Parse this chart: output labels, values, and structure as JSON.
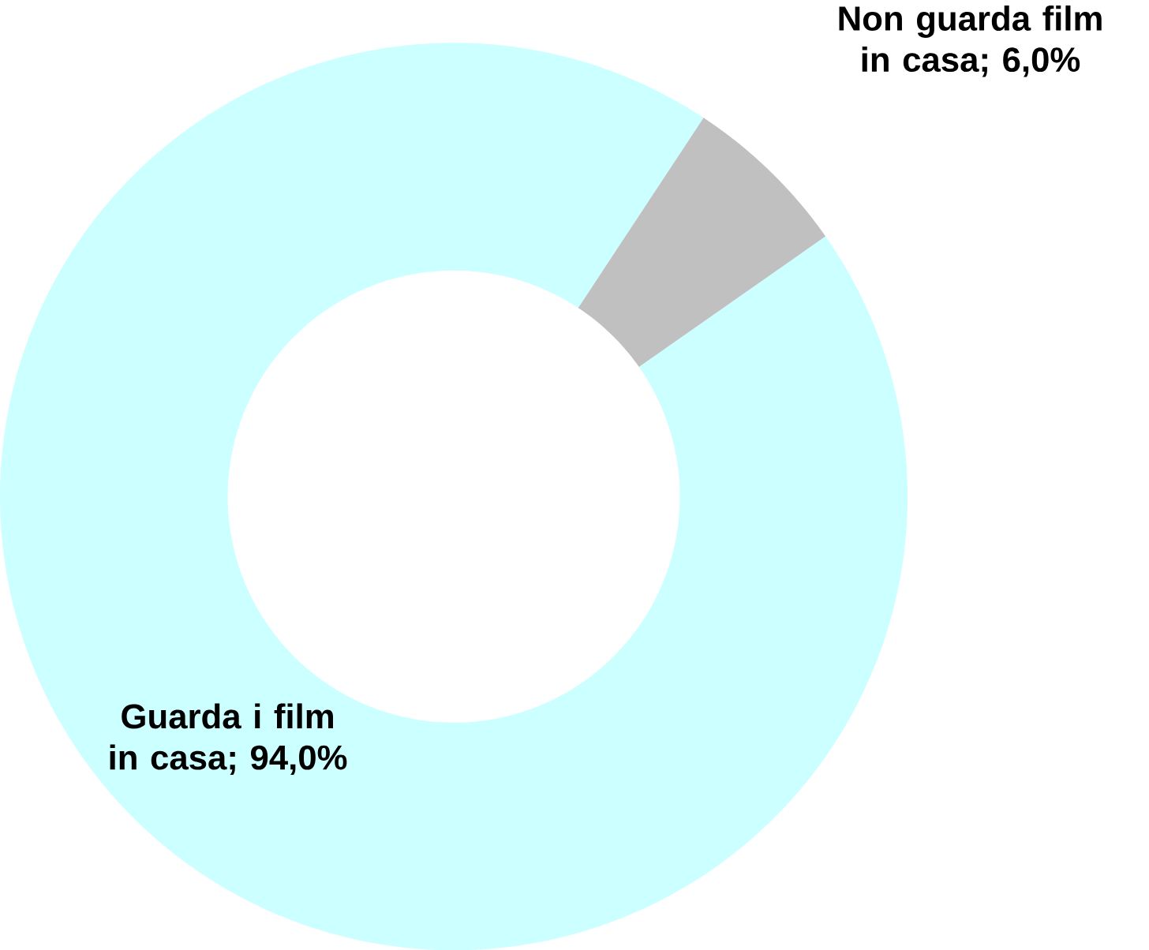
{
  "chart_data": {
    "type": "donut",
    "categories": [
      "Guarda i film in casa",
      "Non guarda film in casa"
    ],
    "values": [
      94.0,
      6.0
    ],
    "colors": [
      "#ccffff",
      "#c0c0c0"
    ],
    "value_labels": [
      "; 94,0%",
      "; 6,0%"
    ]
  }
}
